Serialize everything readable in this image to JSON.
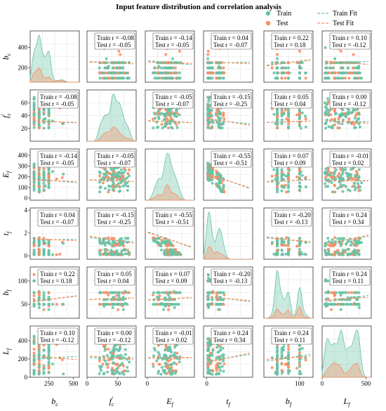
{
  "title": "Input feature distribution and correlation analysis",
  "legend": [
    {
      "label": "Train",
      "kind": "marker",
      "color": "#66c2a5"
    },
    {
      "label": "Test",
      "kind": "marker",
      "color": "#fc8d62"
    },
    {
      "label": "Train Fit",
      "kind": "line",
      "color": "#66c2a5"
    },
    {
      "label": "Test Fit",
      "kind": "line",
      "color": "#fc8d62"
    }
  ],
  "colors": {
    "train": "#66c2a5",
    "test": "#fc8d62"
  },
  "chart_data": {
    "type": "scatter",
    "variables": [
      {
        "key": "bc",
        "base": "b",
        "sub": "c",
        "prime": false,
        "range": [
          60,
          560
        ],
        "ticks": [
          250,
          500
        ],
        "yticks": [
          200,
          400
        ]
      },
      {
        "key": "fc",
        "base": "f",
        "sub": "c",
        "prime": true,
        "range": [
          0,
          80
        ],
        "ticks": [
          0,
          50
        ],
        "yticks": [
          20,
          40,
          60
        ]
      },
      {
        "key": "Ef",
        "base": "E",
        "sub": "f",
        "prime": false,
        "range": [
          -20,
          460
        ],
        "ticks": [
          0,
          500
        ],
        "yticks": [
          0,
          100,
          200,
          300,
          400
        ]
      },
      {
        "key": "tf",
        "base": "t",
        "sub": "f",
        "prime": false,
        "range": [
          -0.3,
          4.2
        ],
        "ticks": [
          0,
          5
        ],
        "yticks": [
          0,
          2,
          4
        ]
      },
      {
        "key": "bf",
        "base": "b",
        "sub": "f",
        "prime": false,
        "range": [
          20,
          130
        ],
        "ticks": [
          0,
          100
        ],
        "yticks": [
          50,
          100
        ]
      },
      {
        "key": "Lf",
        "base": "L",
        "sub": "f",
        "prime": false,
        "range": [
          0,
          560
        ],
        "ticks": [
          0,
          500
        ],
        "yticks": [
          0,
          200,
          400
        ]
      }
    ],
    "correlations": [
      [
        null,
        [
          -0.08,
          -0.05
        ],
        [
          -0.14,
          -0.05
        ],
        [
          0.04,
          -0.07
        ],
        [
          0.22,
          0.18
        ],
        [
          0.1,
          -0.12
        ]
      ],
      [
        [
          -0.08,
          -0.05
        ],
        null,
        [
          -0.05,
          -0.07
        ],
        [
          -0.15,
          -0.25
        ],
        [
          0.05,
          0.04
        ],
        [
          0.0,
          -0.12
        ]
      ],
      [
        [
          -0.14,
          -0.05
        ],
        [
          -0.05,
          -0.07
        ],
        null,
        [
          -0.55,
          -0.51
        ],
        [
          0.07,
          0.09
        ],
        [
          -0.01,
          0.02
        ]
      ],
      [
        [
          0.04,
          -0.07
        ],
        [
          -0.15,
          -0.25
        ],
        [
          -0.55,
          -0.51
        ],
        null,
        [
          -0.2,
          -0.13
        ],
        [
          0.24,
          0.34
        ]
      ],
      [
        [
          0.22,
          0.18
        ],
        [
          0.05,
          0.04
        ],
        [
          0.07,
          0.09
        ],
        [
          -0.2,
          -0.13
        ],
        null,
        [
          0.24,
          0.11
        ]
      ],
      [
        [
          0.1,
          -0.12
        ],
        [
          0.0,
          -0.12
        ],
        [
          -0.01,
          0.02
        ],
        [
          0.24,
          0.34
        ],
        [
          0.24,
          0.11
        ],
        null
      ]
    ],
    "grid": true,
    "legend_position": "top-right"
  }
}
